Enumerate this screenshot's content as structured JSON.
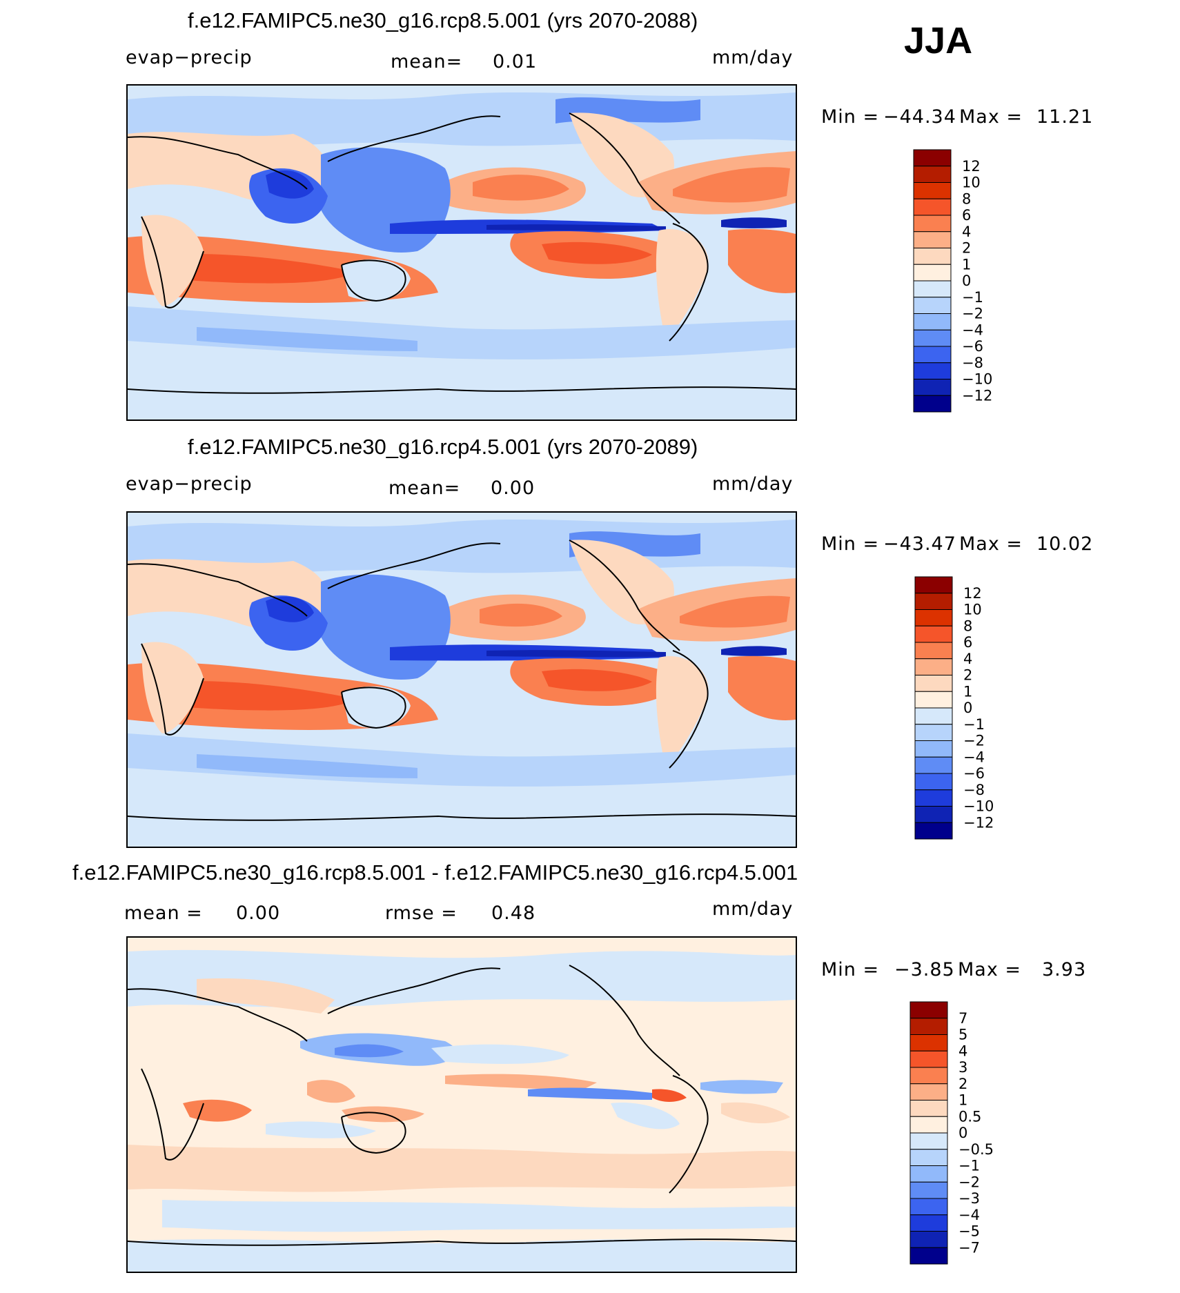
{
  "season": "JJA",
  "panels": [
    {
      "title": "f.e12.FAMIPC5.ne30_g16.rcp8.5.001 (yrs 2070-2088)",
      "left_label": "evap−precip",
      "center_label": "mean=",
      "center_value": "0.01",
      "right_label": "mm/day",
      "min_label": "Min  =",
      "min_value": "−44.34",
      "max_label": "Max  =",
      "max_value": "11.21",
      "colorbar": {
        "colors": [
          "#8b0000",
          "#b41d00",
          "#dc3200",
          "#f5552a",
          "#fa8050",
          "#fcaf87",
          "#fdd9bf",
          "#fff0e0",
          "#d6e8fa",
          "#b7d4fb",
          "#91b9fa",
          "#5f8cf5",
          "#3c64f0",
          "#1e3cdc",
          "#0f23b4",
          "#00008c"
        ],
        "labels": [
          "12",
          "10",
          "8",
          "6",
          "4",
          "2",
          "1",
          "0",
          "−1",
          "−2",
          "−4",
          "−6",
          "−8",
          "−10",
          "−12"
        ]
      }
    },
    {
      "title": "f.e12.FAMIPC5.ne30_g16.rcp4.5.001 (yrs 2070-2089)",
      "left_label": "evap−precip",
      "center_label": "mean=",
      "center_value": "0.00",
      "right_label": "mm/day",
      "min_label": "Min  =",
      "min_value": "−43.47",
      "max_label": "Max  =",
      "max_value": "10.02",
      "colorbar": {
        "colors": [
          "#8b0000",
          "#b41d00",
          "#dc3200",
          "#f5552a",
          "#fa8050",
          "#fcaf87",
          "#fdd9bf",
          "#fff0e0",
          "#d6e8fa",
          "#b7d4fb",
          "#91b9fa",
          "#5f8cf5",
          "#3c64f0",
          "#1e3cdc",
          "#0f23b4",
          "#00008c"
        ],
        "labels": [
          "12",
          "10",
          "8",
          "6",
          "4",
          "2",
          "1",
          "0",
          "−1",
          "−2",
          "−4",
          "−6",
          "−8",
          "−10",
          "−12"
        ]
      }
    },
    {
      "title": "f.e12.FAMIPC5.ne30_g16.rcp8.5.001 - f.e12.FAMIPC5.ne30_g16.rcp4.5.001",
      "left_label": "mean  =",
      "left_value": "0.00",
      "center_label": "rmse  =",
      "center_value": "0.48",
      "right_label": "mm/day",
      "min_label": "Min  =",
      "min_value": "−3.85",
      "max_label": "Max  =",
      "max_value": "3.93",
      "colorbar": {
        "colors": [
          "#8b0000",
          "#b41d00",
          "#dc3200",
          "#f5552a",
          "#fa8050",
          "#fcaf87",
          "#fdd9bf",
          "#fff0e0",
          "#d6e8fa",
          "#b7d4fb",
          "#91b9fa",
          "#5f8cf5",
          "#3c64f0",
          "#1e3cdc",
          "#0f23b4",
          "#00008c"
        ],
        "labels": [
          "7",
          "5",
          "4",
          "3",
          "2",
          "1",
          "0.5",
          "0",
          "−0.5",
          "−1",
          "−2",
          "−3",
          "−4",
          "−5",
          "−7"
        ]
      }
    }
  ]
}
